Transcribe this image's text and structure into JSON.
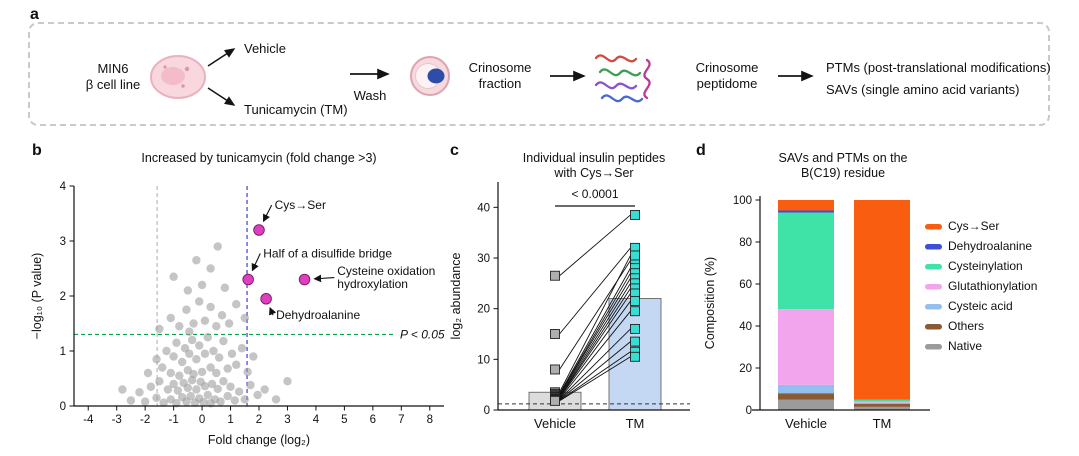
{
  "figure": {
    "panel_labels": {
      "a": "a",
      "b": "b",
      "c": "c",
      "d": "d"
    }
  },
  "panel_a": {
    "cell_line": [
      "MIN6",
      "β cell line"
    ],
    "treatment_top": "Vehicle",
    "treatment_bottom": "Tunicamycin (TM)",
    "wash": "Wash",
    "fraction": [
      "Crinosome",
      "fraction"
    ],
    "peptidome": [
      "Crinosome",
      "peptidome"
    ],
    "outputs": [
      "PTMs (post-translational modifications)",
      "SAVs (single amino acid variants)"
    ]
  },
  "chart_data": [
    {
      "id": "volcano",
      "type": "scatter",
      "title": "Increased by tunicamycin (fold change >3)",
      "title_color": "#2b2bd6",
      "xlabel": "Fold change (log₂)",
      "ylabel": "−log₁₀ (P value)",
      "xlim": [
        -4.5,
        8.5
      ],
      "ylim": [
        0,
        4
      ],
      "xticks": [
        -4,
        -3,
        -2,
        -1,
        0,
        1,
        2,
        3,
        4,
        5,
        6,
        7,
        8
      ],
      "yticks": [
        0,
        1,
        2,
        3,
        4
      ],
      "threshold_lines": {
        "gray_vline_x": -1.58,
        "blue_vline_x": 1.58,
        "green_hline_y": 1.301,
        "green_label": "P < 0.05",
        "green_color": "#0aa64f",
        "blue_color": "#2b2bd6",
        "gray_color": "#b3b3b3"
      },
      "point_color": "#9e9e9e",
      "highlight_color": "#df3fbe",
      "gray_points": [
        [
          -2.5,
          0.1
        ],
        [
          -2.2,
          0.25
        ],
        [
          -2.0,
          0.08
        ],
        [
          -1.8,
          0.35
        ],
        [
          -1.6,
          0.15
        ],
        [
          -1.5,
          0.45
        ],
        [
          -1.35,
          0.06
        ],
        [
          -1.2,
          0.3
        ],
        [
          -1.1,
          0.12
        ],
        [
          -1.0,
          0.4
        ],
        [
          -0.9,
          0.05
        ],
        [
          -0.85,
          0.28
        ],
        [
          -0.7,
          0.16
        ],
        [
          -0.65,
          0.42
        ],
        [
          -0.55,
          0.08
        ],
        [
          -0.5,
          0.33
        ],
        [
          -0.4,
          0.18
        ],
        [
          -0.35,
          0.47
        ],
        [
          -0.25,
          0.06
        ],
        [
          -0.2,
          0.3
        ],
        [
          -0.1,
          0.14
        ],
        [
          -0.05,
          0.44
        ],
        [
          0.05,
          0.07
        ],
        [
          0.1,
          0.36
        ],
        [
          0.2,
          0.2
        ],
        [
          0.3,
          0.05
        ],
        [
          0.35,
          0.4
        ],
        [
          0.45,
          0.12
        ],
        [
          0.55,
          0.31
        ],
        [
          0.65,
          0.08
        ],
        [
          0.75,
          0.45
        ],
        [
          0.9,
          0.18
        ],
        [
          1.0,
          0.35
        ],
        [
          1.15,
          0.1
        ],
        [
          1.3,
          0.26
        ],
        [
          1.5,
          0.12
        ],
        [
          1.7,
          0.38
        ],
        [
          1.95,
          0.2
        ],
        [
          2.2,
          0.3
        ],
        [
          2.6,
          0.12
        ],
        [
          3.0,
          0.45
        ],
        [
          -2.8,
          0.3
        ],
        [
          -1.9,
          0.6
        ],
        [
          -1.6,
          0.85
        ],
        [
          -1.4,
          0.7
        ],
        [
          -1.25,
          1.0
        ],
        [
          -1.1,
          0.6
        ],
        [
          -1.0,
          0.9
        ],
        [
          -0.9,
          1.15
        ],
        [
          -0.8,
          0.55
        ],
        [
          -0.7,
          0.8
        ],
        [
          -0.6,
          1.05
        ],
        [
          -0.5,
          0.65
        ],
        [
          -0.45,
          0.95
        ],
        [
          -0.35,
          1.2
        ],
        [
          -0.3,
          0.58
        ],
        [
          -0.2,
          0.85
        ],
        [
          -0.1,
          1.1
        ],
        [
          0.0,
          0.62
        ],
        [
          0.1,
          0.95
        ],
        [
          0.2,
          1.25
        ],
        [
          0.3,
          0.7
        ],
        [
          0.4,
          1.0
        ],
        [
          0.5,
          0.6
        ],
        [
          0.6,
          0.88
        ],
        [
          0.75,
          1.18
        ],
        [
          0.9,
          0.68
        ],
        [
          1.05,
          0.95
        ],
        [
          1.2,
          0.75
        ],
        [
          1.4,
          1.05
        ],
        [
          1.6,
          0.62
        ],
        [
          1.8,
          0.9
        ],
        [
          -1.5,
          1.4
        ],
        [
          -1.1,
          1.6
        ],
        [
          -0.8,
          1.45
        ],
        [
          -0.55,
          1.75
        ],
        [
          -0.3,
          1.5
        ],
        [
          -0.1,
          1.9
        ],
        [
          0.1,
          1.55
        ],
        [
          0.3,
          1.8
        ],
        [
          0.5,
          1.45
        ],
        [
          0.7,
          1.65
        ],
        [
          0.95,
          1.5
        ],
        [
          1.2,
          1.85
        ],
        [
          1.5,
          1.6
        ],
        [
          -0.45,
          1.35
        ],
        [
          -1.0,
          2.35
        ],
        [
          -0.5,
          2.1
        ],
        [
          0.3,
          2.5
        ],
        [
          0.55,
          2.9
        ],
        [
          0.0,
          2.2
        ],
        [
          0.8,
          2.15
        ],
        [
          -0.2,
          2.65
        ]
      ],
      "highlights": [
        {
          "lines": [
            "Cys→Ser"
          ],
          "point": [
            2.0,
            3.2
          ],
          "text_pos": [
            2.55,
            3.58
          ]
        },
        {
          "lines": [
            "Half of a disulfide bridge"
          ],
          "point": [
            1.62,
            2.3
          ],
          "text_pos": [
            2.15,
            2.7
          ]
        },
        {
          "lines": [
            "Cysteine oxidation",
            "hydroxylation"
          ],
          "point": [
            3.6,
            2.3
          ],
          "text_pos": [
            4.75,
            2.38
          ]
        },
        {
          "lines": [
            "Dehydroalanine"
          ],
          "point": [
            2.25,
            1.95
          ],
          "text_pos": [
            2.6,
            1.58
          ]
        }
      ]
    },
    {
      "id": "paired",
      "type": "paired_scatter_bar",
      "title_lines": [
        "Individual insulin peptides",
        "with Cys→Ser"
      ],
      "ylabel": "log₂ abundance",
      "ylim": [
        0,
        45
      ],
      "yticks": [
        0,
        10,
        20,
        30,
        40
      ],
      "categories": [
        "Vehicle",
        "TM"
      ],
      "bar_values": [
        3.5,
        22
      ],
      "bar_colors": [
        "#dcdcdc",
        "#c5d8f3"
      ],
      "point_colors": [
        "#aeaeae",
        "#38ddd3"
      ],
      "significance_label": "< 0.0001",
      "baseline_dash_y": 1.2,
      "pairs": [
        [
          26.5,
          38.5
        ],
        [
          15,
          32
        ],
        [
          8,
          29.5
        ],
        [
          3.5,
          30.5
        ],
        [
          3.2,
          28
        ],
        [
          3,
          27
        ],
        [
          3,
          26
        ],
        [
          2.8,
          25
        ],
        [
          2.6,
          24
        ],
        [
          2.5,
          23
        ],
        [
          2.4,
          21.5
        ],
        [
          2.2,
          19.5
        ],
        [
          2.1,
          16
        ],
        [
          2,
          13.5
        ],
        [
          1.9,
          11.5
        ],
        [
          1.8,
          10.5
        ]
      ]
    },
    {
      "id": "stacked",
      "type": "stacked_bar",
      "title_lines": [
        "SAVs and PTMs on the",
        "B(C19) residue"
      ],
      "ylabel": "Composition (%)",
      "ylim": [
        0,
        100
      ],
      "yticks": [
        0,
        20,
        40,
        60,
        80,
        100
      ],
      "categories": [
        "Vehicle",
        "TM"
      ],
      "series": [
        {
          "name": "Native",
          "color": "#9b9b9b",
          "values": [
            5,
            1.5
          ]
        },
        {
          "name": "Others",
          "color": "#8a5a33",
          "values": [
            3,
            1.5
          ]
        },
        {
          "name": "Cysteic acid",
          "color": "#93bfef",
          "values": [
            4,
            0.5
          ]
        },
        {
          "name": "Glutathionylation",
          "color": "#f2a4ec",
          "values": [
            36,
            0.5
          ]
        },
        {
          "name": "Cysteinylation",
          "color": "#3fe3a7",
          "values": [
            46,
            1
          ]
        },
        {
          "name": "Dehydroalanine",
          "color": "#3d4fd7",
          "values": [
            1,
            0
          ]
        },
        {
          "name": "Cys→Ser",
          "color": "#f95d10",
          "values": [
            5,
            95
          ]
        }
      ],
      "legend_order": [
        "Cys→Ser",
        "Dehydroalanine",
        "Cysteinylation",
        "Glutathionylation",
        "Cysteic acid",
        "Others",
        "Native"
      ]
    }
  ]
}
